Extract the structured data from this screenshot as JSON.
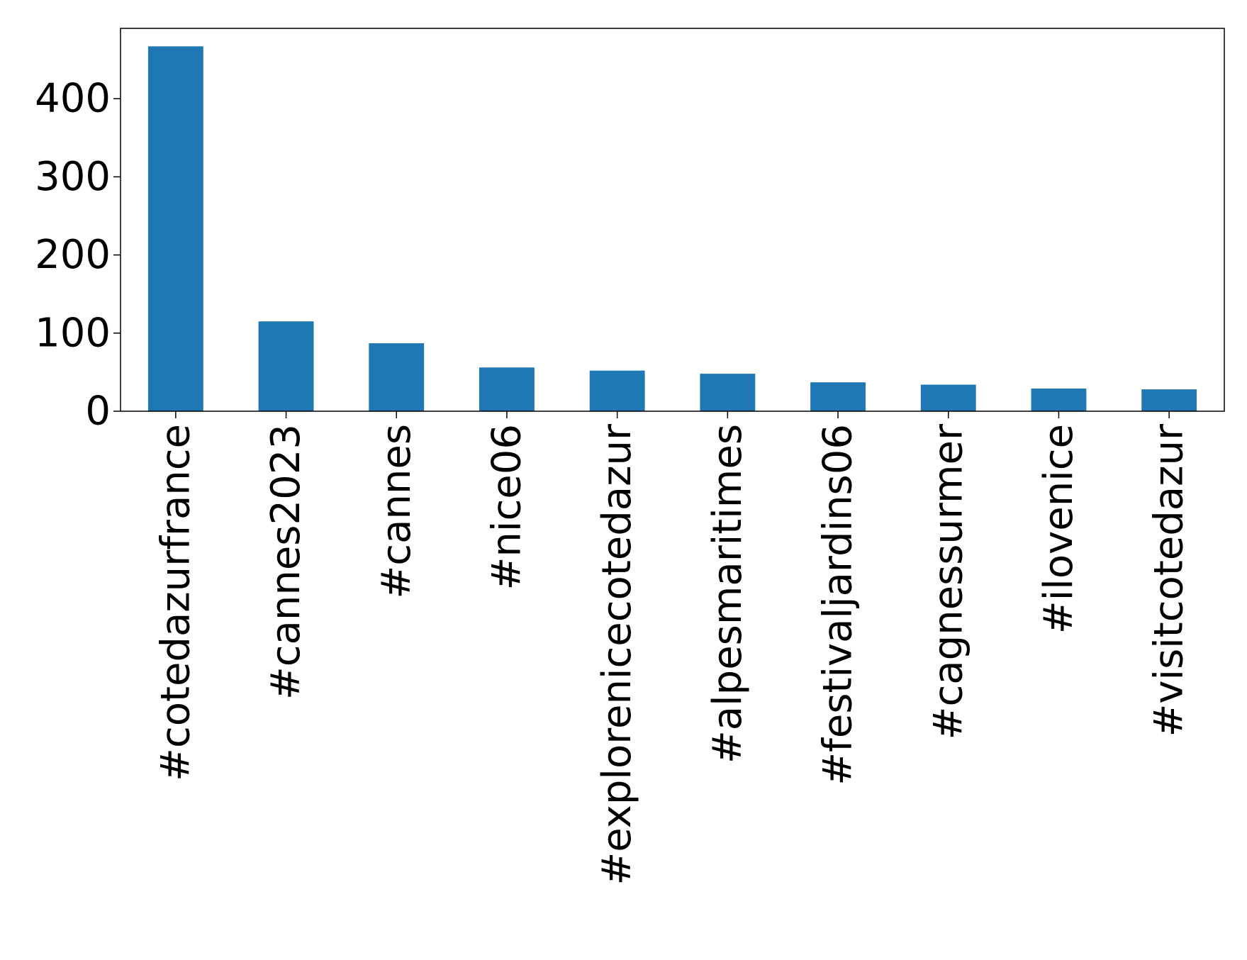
{
  "chart_data": {
    "type": "bar",
    "title": "",
    "xlabel": "",
    "ylabel": "",
    "categories": [
      "#cotedazurfrance",
      "#cannes2023",
      "#cannes",
      "#nice06",
      "#explorenicecotedazur",
      "#alpesmaritimes",
      "#festivaljardins06",
      "#cagnessurmer",
      "#ilovenice",
      "#visitcotedazur"
    ],
    "values": [
      467,
      115,
      87,
      56,
      52,
      48,
      37,
      34,
      29,
      28
    ],
    "ylim": [
      0,
      490
    ],
    "yticks": [
      0,
      100,
      200,
      300,
      400
    ],
    "bar_color": "#1f77b4",
    "grid": false,
    "legend": "none"
  }
}
